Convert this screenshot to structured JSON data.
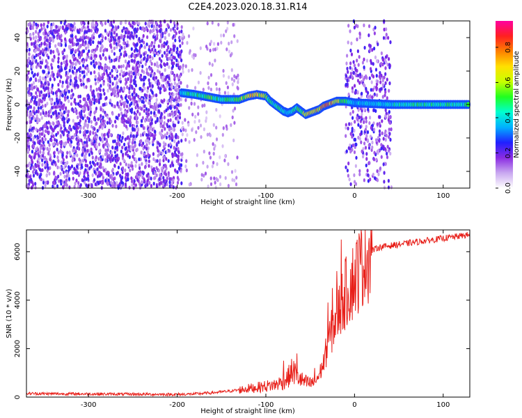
{
  "figure_title": "C2E4.2023.020.18.31.R14",
  "chart_data": [
    {
      "type": "heatmap",
      "xlabel": "Height of straight line (km)",
      "ylabel": "Frequency (Hz)",
      "xlim": [
        -370,
        130
      ],
      "ylim": [
        -50,
        50
      ],
      "x_ticks": [
        -300,
        -200,
        -100,
        0,
        100
      ],
      "x_tick_labels": [
        "-300",
        "-200",
        "-100",
        "0",
        "100"
      ],
      "y_ticks": [
        -40,
        -20,
        0,
        20,
        40
      ],
      "y_tick_labels": [
        "-40",
        "-20",
        "0",
        "20",
        "40"
      ],
      "colorbar": {
        "label": "Normalized spectral amplitude",
        "range": [
          0,
          0.95
        ],
        "ticks": [
          0.0,
          0.2,
          0.4,
          0.6,
          0.8
        ],
        "tick_labels": [
          "0.0",
          "0.2",
          "0.4",
          "0.6",
          "0.8"
        ],
        "colors": [
          "#ffffff",
          "#c9a8f0",
          "#8a2be2",
          "#2020ff",
          "#00b0ff",
          "#00ffd0",
          "#20ff20",
          "#c8ff00",
          "#ffe000",
          "#ff8000",
          "#ff2020",
          "#ff00a0"
        ]
      },
      "noise_regions": [
        {
          "x_range": [
            -370,
            -195
          ],
          "density": "high"
        },
        {
          "x_range": [
            -195,
            -130
          ],
          "density": "low"
        },
        {
          "x_range": [
            -10,
            42
          ],
          "density": "medium"
        }
      ],
      "signal_ridge": {
        "x": [
          -195,
          -180,
          -170,
          -160,
          -150,
          -140,
          -130,
          -120,
          -110,
          -100,
          -95,
          -90,
          -85,
          -80,
          -75,
          -70,
          -65,
          -60,
          -55,
          -50,
          -45,
          -40,
          -35,
          -30,
          -25,
          -20,
          -15,
          -10,
          0,
          20,
          42,
          80,
          130
        ],
        "freq": [
          7,
          6,
          5,
          4,
          3,
          3,
          3,
          5,
          6,
          5,
          2,
          0,
          -2,
          -4,
          -5,
          -4,
          -2,
          -4,
          -6,
          -5,
          -4,
          -3,
          -1,
          0,
          1,
          2,
          2,
          2,
          1,
          0.5,
          0,
          0,
          0
        ],
        "amplitude": [
          0.45,
          0.5,
          0.5,
          0.55,
          0.5,
          0.55,
          0.55,
          0.7,
          0.75,
          0.6,
          0.5,
          0.45,
          0.5,
          0.45,
          0.4,
          0.45,
          0.5,
          0.55,
          0.7,
          0.75,
          0.8,
          0.75,
          0.8,
          0.85,
          0.75,
          0.7,
          0.6,
          0.5,
          0.4,
          0.4,
          0.45,
          0.5,
          0.5
        ]
      }
    },
    {
      "type": "line",
      "xlabel": "Height of straight line (km)",
      "ylabel": "SNR (10 * v/v)",
      "xlim": [
        -370,
        130
      ],
      "ylim": [
        0,
        6900
      ],
      "x_ticks": [
        -300,
        -200,
        -100,
        0,
        100
      ],
      "x_tick_labels": [
        "-300",
        "-200",
        "-100",
        "0",
        "100"
      ],
      "y_ticks": [
        0,
        2000,
        4000,
        6000
      ],
      "y_tick_labels": [
        "0",
        "2000",
        "4000",
        "6000"
      ],
      "color": "#e8201a",
      "series": [
        {
          "x": [
            -370,
            -350,
            -300,
            -250,
            -200,
            -180,
            -160,
            -140,
            -120,
            -110,
            -100,
            -90,
            -80,
            -75,
            -70,
            -65,
            -60,
            -55,
            -50,
            -45,
            -40,
            -35,
            -30,
            -25,
            -20,
            -15,
            -10,
            -5,
            0,
            5,
            10,
            15,
            20,
            25,
            30,
            40,
            50,
            60,
            70,
            80,
            90,
            100,
            110,
            120,
            130
          ],
          "y": [
            150,
            140,
            130,
            120,
            110,
            130,
            180,
            250,
            350,
            400,
            450,
            500,
            650,
            800,
            1100,
            900,
            700,
            600,
            550,
            650,
            900,
            1400,
            2200,
            2800,
            3400,
            3800,
            4300,
            4600,
            4900,
            5300,
            5700,
            5900,
            6050,
            6150,
            6200,
            6250,
            6300,
            6350,
            6400,
            6450,
            6500,
            6550,
            6600,
            6650,
            6700
          ],
          "spikes": [
            {
              "x": -15,
              "y": 6500
            },
            {
              "x": -10,
              "y": 5600
            },
            {
              "x": -20,
              "y": 5200
            },
            {
              "x": -25,
              "y": 4500
            },
            {
              "x": -30,
              "y": 3900
            },
            {
              "x": -45,
              "y": 1200
            },
            {
              "x": -65,
              "y": 1800
            },
            {
              "x": -80,
              "y": 1500
            }
          ]
        }
      ]
    }
  ]
}
